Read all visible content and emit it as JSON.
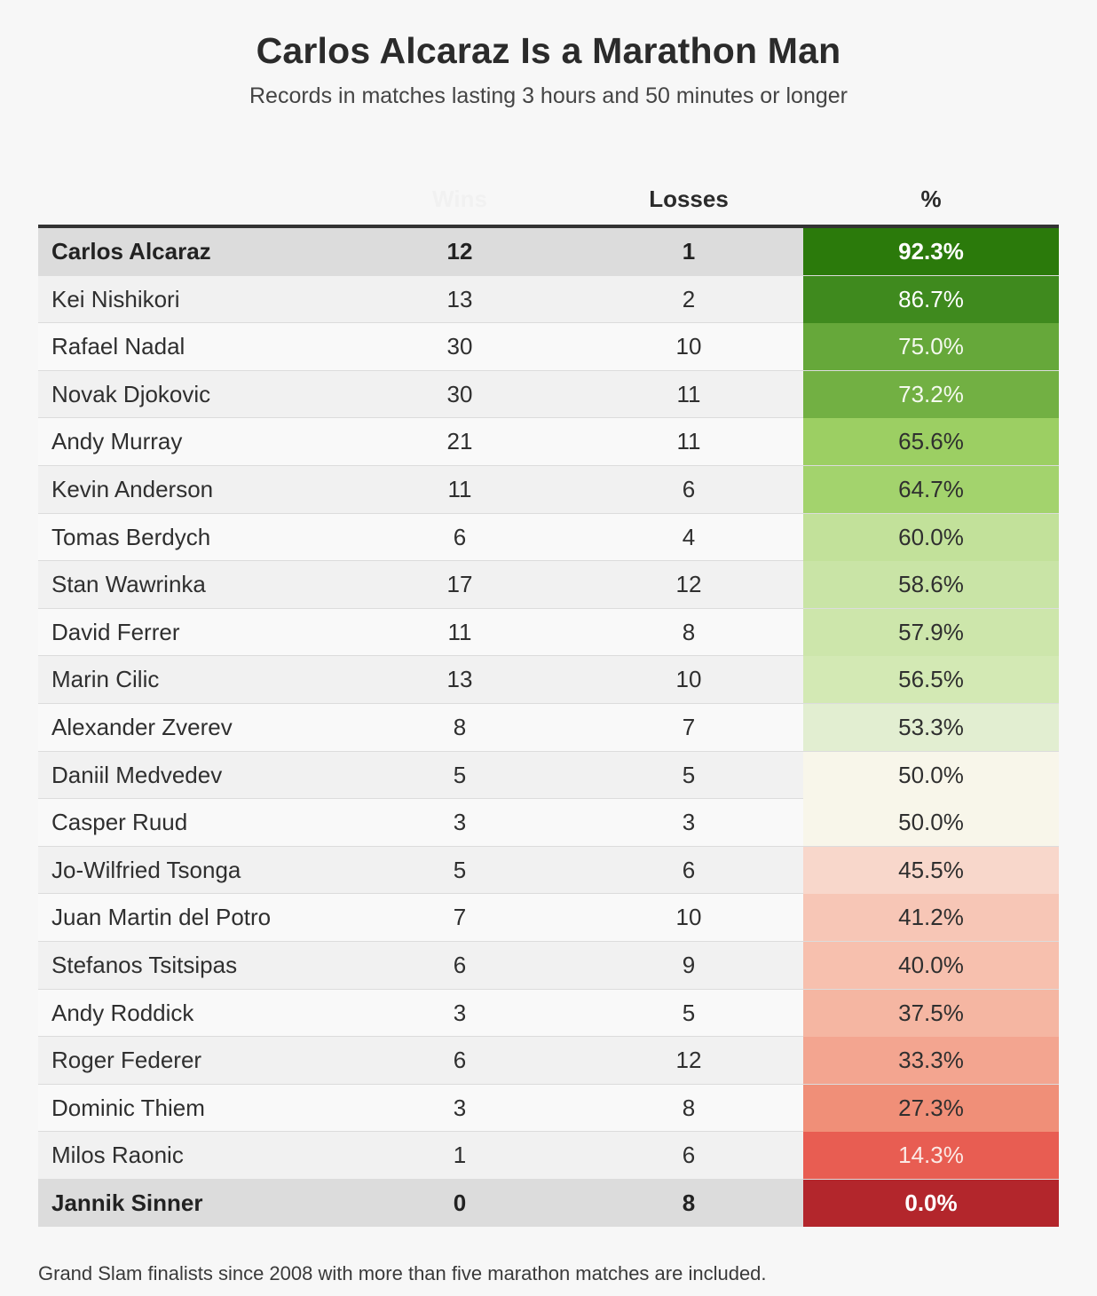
{
  "chart_data": {
    "type": "table",
    "title": "Carlos Alcaraz Is a Marathon Man",
    "subtitle": "Records in matches lasting 3 hours and 50 minutes or longer",
    "columns": [
      "Wins",
      "Losses",
      "%"
    ],
    "rows": [
      {
        "player": "Carlos Alcaraz",
        "wins": "12",
        "losses": "1",
        "pct": "92.3%",
        "value": 92.3,
        "bold": true
      },
      {
        "player": "Kei Nishikori",
        "wins": "13",
        "losses": "2",
        "pct": "86.7%",
        "value": 86.7
      },
      {
        "player": "Rafael Nadal",
        "wins": "30",
        "losses": "10",
        "pct": "75.0%",
        "value": 75.0
      },
      {
        "player": "Novak Djokovic",
        "wins": "30",
        "losses": "11",
        "pct": "73.2%",
        "value": 73.2
      },
      {
        "player": "Andy Murray",
        "wins": "21",
        "losses": "11",
        "pct": "65.6%",
        "value": 65.6
      },
      {
        "player": "Kevin Anderson",
        "wins": "11",
        "losses": "6",
        "pct": "64.7%",
        "value": 64.7
      },
      {
        "player": "Tomas Berdych",
        "wins": "6",
        "losses": "4",
        "pct": "60.0%",
        "value": 60.0
      },
      {
        "player": "Stan Wawrinka",
        "wins": "17",
        "losses": "12",
        "pct": "58.6%",
        "value": 58.6
      },
      {
        "player": "David Ferrer",
        "wins": "11",
        "losses": "8",
        "pct": "57.9%",
        "value": 57.9
      },
      {
        "player": "Marin Cilic",
        "wins": "13",
        "losses": "10",
        "pct": "56.5%",
        "value": 56.5
      },
      {
        "player": "Alexander Zverev",
        "wins": "8",
        "losses": "7",
        "pct": "53.3%",
        "value": 53.3
      },
      {
        "player": "Daniil Medvedev",
        "wins": "5",
        "losses": "5",
        "pct": "50.0%",
        "value": 50.0
      },
      {
        "player": "Casper Ruud",
        "wins": "3",
        "losses": "3",
        "pct": "50.0%",
        "value": 50.0
      },
      {
        "player": "Jo-Wilfried Tsonga",
        "wins": "5",
        "losses": "6",
        "pct": "45.5%",
        "value": 45.5
      },
      {
        "player": "Juan Martin del Potro",
        "wins": "7",
        "losses": "10",
        "pct": "41.2%",
        "value": 41.2
      },
      {
        "player": "Stefanos Tsitsipas",
        "wins": "6",
        "losses": "9",
        "pct": "40.0%",
        "value": 40.0
      },
      {
        "player": "Andy Roddick",
        "wins": "3",
        "losses": "5",
        "pct": "37.5%",
        "value": 37.5
      },
      {
        "player": "Roger Federer",
        "wins": "6",
        "losses": "12",
        "pct": "33.3%",
        "value": 33.3
      },
      {
        "player": "Dominic Thiem",
        "wins": "3",
        "losses": "8",
        "pct": "27.3%",
        "value": 27.3
      },
      {
        "player": "Milos Raonic",
        "wins": "1",
        "losses": "6",
        "pct": "14.3%",
        "value": 14.3
      },
      {
        "player": "Jannik Sinner",
        "wins": "0",
        "losses": "8",
        "pct": "0.0%",
        "value": 0.0,
        "bold": true
      }
    ],
    "footnote": "Grand Slam finalists since 2008 with more than five marathon matches are included."
  },
  "cell_colors": [
    {
      "bg": "#2b7a0b",
      "fg": "#ffffff"
    },
    {
      "bg": "#3f8a1e",
      "fg": "#ffffff"
    },
    {
      "bg": "#66a83a",
      "fg": "#f4f9ee"
    },
    {
      "bg": "#72b043",
      "fg": "#f4f9ee"
    },
    {
      "bg": "#9ccf63",
      "fg": "#2f2f2f"
    },
    {
      "bg": "#a3d36d",
      "fg": "#2f2f2f"
    },
    {
      "bg": "#c2e19a",
      "fg": "#2f2f2f"
    },
    {
      "bg": "#c9e4a6",
      "fg": "#2f2f2f"
    },
    {
      "bg": "#cde6ab",
      "fg": "#2f2f2f"
    },
    {
      "bg": "#d3e9b4",
      "fg": "#2f2f2f"
    },
    {
      "bg": "#e2eed1",
      "fg": "#2f2f2f"
    },
    {
      "bg": "#f8f6ea",
      "fg": "#2f2f2f"
    },
    {
      "bg": "#f8f6ea",
      "fg": "#2f2f2f"
    },
    {
      "bg": "#f8d7cb",
      "fg": "#2f2f2f"
    },
    {
      "bg": "#f7c6b6",
      "fg": "#2f2f2f"
    },
    {
      "bg": "#f7c0ae",
      "fg": "#2f2f2f"
    },
    {
      "bg": "#f5b6a2",
      "fg": "#2f2f2f"
    },
    {
      "bg": "#f3a590",
      "fg": "#2f2f2f"
    },
    {
      "bg": "#f08f78",
      "fg": "#2f2f2f"
    },
    {
      "bg": "#e85d52",
      "fg": "#fbe9e5"
    },
    {
      "bg": "#b3262c",
      "fg": "#ffffff"
    }
  ]
}
